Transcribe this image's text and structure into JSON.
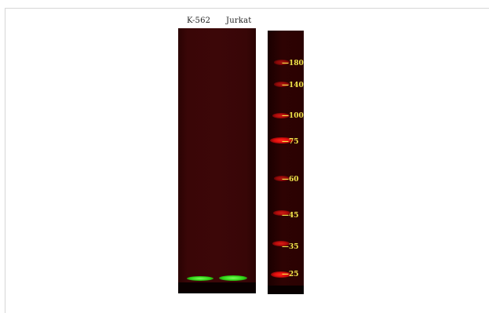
{
  "lanes": {
    "lane1": "K-562",
    "lane2": "Jurkat"
  },
  "markers": [
    "180",
    "140",
    "100",
    "75",
    "60",
    "45",
    "35",
    "25"
  ],
  "colors": {
    "blot_background": "#3c0708",
    "band_green": "#2bd414",
    "ladder_band_red": "#e00d0d",
    "marker_text": "#f2e64a"
  }
}
